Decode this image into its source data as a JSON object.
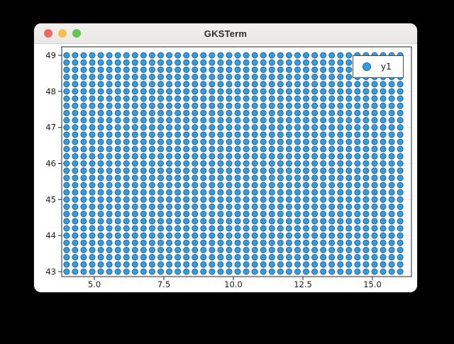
{
  "window": {
    "title": "GKSTerm",
    "traffic_lights": [
      {
        "name": "close",
        "color": "#ee6a5f"
      },
      {
        "name": "minimize",
        "color": "#f5bf4f"
      },
      {
        "name": "zoom",
        "color": "#61c454"
      }
    ],
    "titlebar_bg": "#f0eeec",
    "content_bg": "#ffffff"
  },
  "chart_data": {
    "type": "scatter",
    "title": "",
    "xlabel": "",
    "ylabel": "",
    "x_ticks": [
      5.0,
      7.5,
      10.0,
      12.5,
      15.0
    ],
    "x_tick_labels": [
      "5.0",
      "7.5",
      "10.0",
      "12.5",
      "15.0"
    ],
    "y_ticks": [
      49,
      48,
      47,
      46,
      45,
      44,
      43
    ],
    "y_tick_labels": [
      "49",
      "48",
      "47",
      "46",
      "45",
      "44",
      "43"
    ],
    "xlim": [
      3.83,
      16.4
    ],
    "ylim": [
      42.86,
      49.24
    ],
    "grid": true,
    "points_grid": {
      "comment": "regular lattice of identical markers",
      "x_start": 4.0,
      "x_stop": 16.0,
      "x_count": 40,
      "y_start": 43.0,
      "y_stop": 49.0,
      "y_count": 31
    },
    "series": [
      {
        "name": "y1",
        "marker": "circle",
        "marker_size_px": 8,
        "fill": "#2e9fe6",
        "stroke": "#31618a"
      }
    ],
    "legend": {
      "label": "y1",
      "position": "top-right",
      "border": "#4a4a4a",
      "bg": "#ffffff"
    },
    "colors": {
      "axis": "#262626",
      "grid": "#e8e8e8",
      "tick_label": "#1a1a1a"
    }
  }
}
